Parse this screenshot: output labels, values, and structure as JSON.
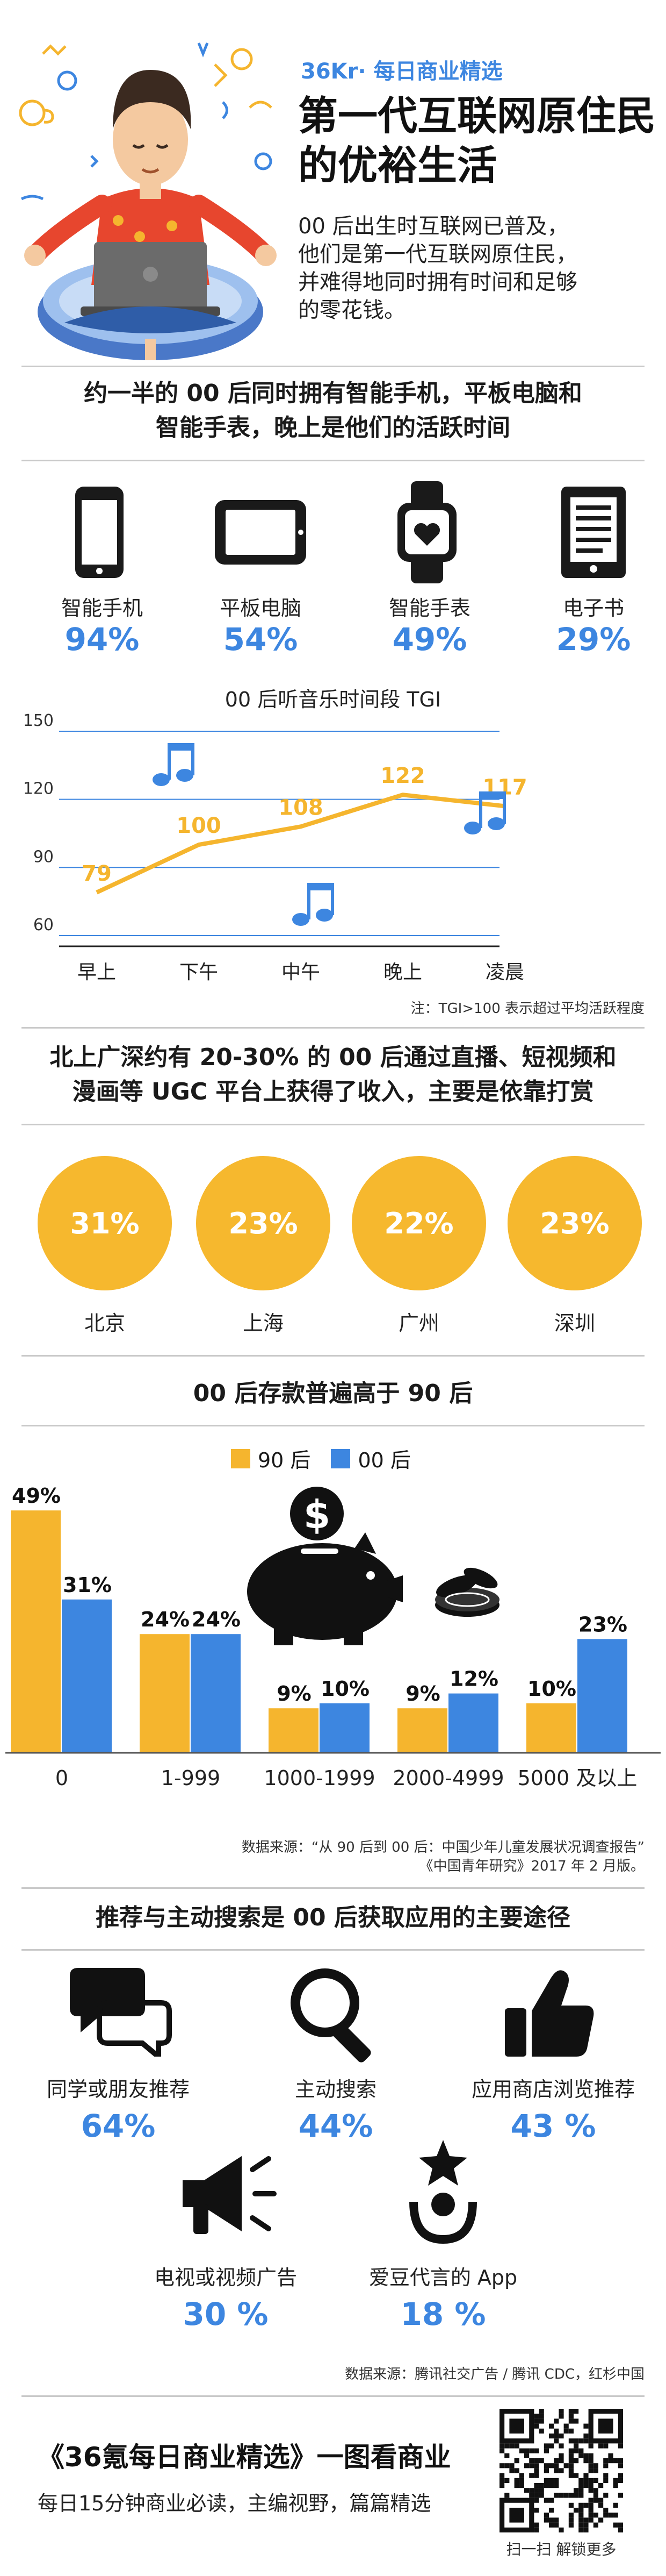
{
  "header": {
    "brand_logo": "36Kr",
    "brand_sub": "· 每日商业精选",
    "title_line1": "第一代互联网原住民",
    "title_line2": "的优裕生活",
    "intro": [
      "00 后出生时互联网已普及，",
      "他们是第一代互联网原住民，",
      "并难得地同时拥有时间和足够",
      "的零花钱。"
    ]
  },
  "devices": {
    "title_line1": "约一半的 00 后同时拥有智能手机，平板电脑和",
    "title_line2": "智能手表，晚上是他们的活跃时间",
    "items": [
      {
        "label": "智能手机",
        "pct": "94%",
        "icon": "smartphone-icon"
      },
      {
        "label": "平板电脑",
        "pct": "54%",
        "icon": "tablet-icon"
      },
      {
        "label": "智能手表",
        "pct": "49%",
        "icon": "smartwatch-icon"
      },
      {
        "label": "电子书",
        "pct": "29%",
        "icon": "ebook-icon"
      }
    ]
  },
  "chart_data": [
    {
      "type": "line",
      "title": "00 后听音乐时间段 TGI",
      "categories": [
        "早上",
        "下午",
        "中午",
        "晚上",
        "凌晨"
      ],
      "values": [
        79,
        100,
        108,
        122,
        117
      ],
      "yticks": [
        150,
        120,
        90,
        60
      ],
      "ylim": [
        60,
        150
      ],
      "grid": true,
      "note": "注：TGI>100 表示超过平均活跃程度"
    },
    {
      "type": "bar",
      "title": "00 后存款普遍高于 90 后",
      "categories": [
        "0",
        "1-999",
        "1000-1999",
        "2000-4999",
        "5000 及以上"
      ],
      "series": [
        {
          "name": "90 后",
          "values": [
            49,
            24,
            9,
            9,
            10
          ],
          "labels": [
            "49%",
            "24%",
            "9%",
            "9%",
            "10%"
          ]
        },
        {
          "name": "00 后",
          "values": [
            31,
            24,
            10,
            12,
            23
          ],
          "labels": [
            "31%",
            "24%",
            "10%",
            "12%",
            "23%"
          ]
        }
      ],
      "ylim": [
        0,
        50
      ],
      "legend": "top-center",
      "source_line1": "数据来源：“从 90 后到 00 后：中国少年儿童发展状况调查报告”",
      "source_line2": "《中国青年研究》2017 年 2 月版。"
    }
  ],
  "ugc": {
    "title_line1": "北上广深约有 20-30% 的 00 后通过直播、短视频和",
    "title_line2": "漫画等 UGC 平台上获得了收入，主要是依靠打赏",
    "cities": [
      {
        "pct": "31%",
        "city": "北京"
      },
      {
        "pct": "23%",
        "city": "上海"
      },
      {
        "pct": "22%",
        "city": "广州"
      },
      {
        "pct": "23%",
        "city": "深圳"
      }
    ]
  },
  "apps": {
    "title": "推荐与主动搜索是 00 后获取应用的主要途径",
    "items": [
      {
        "label": "同学或朋友推荐",
        "pct": "64%",
        "icon": "speech-bubbles-icon"
      },
      {
        "label": "主动搜索",
        "pct": "44%",
        "icon": "magnifier-icon"
      },
      {
        "label": "应用商店浏览推荐",
        "pct": "43 %",
        "icon": "thumbs-up-icon"
      },
      {
        "label": "电视或视频广告",
        "pct": "30 %",
        "icon": "megaphone-icon"
      },
      {
        "label": "爱豆代言的 App",
        "pct": "18 %",
        "icon": "idol-star-icon"
      }
    ],
    "source": "数据来源：腾讯社交广告 / 腾讯 CDC，红杉中国"
  },
  "footer": {
    "title": "《36氪每日商业精选》一图看商业",
    "subtitle": "每日15分钟商业必读，主编视野，篇篇精选",
    "qr_caption": "扫一扫 解锁更多"
  },
  "colors": {
    "blue": "#3d86e0",
    "yellow": "#f5b52e",
    "line": "#f5b52e",
    "grid": "#3d86e0"
  }
}
